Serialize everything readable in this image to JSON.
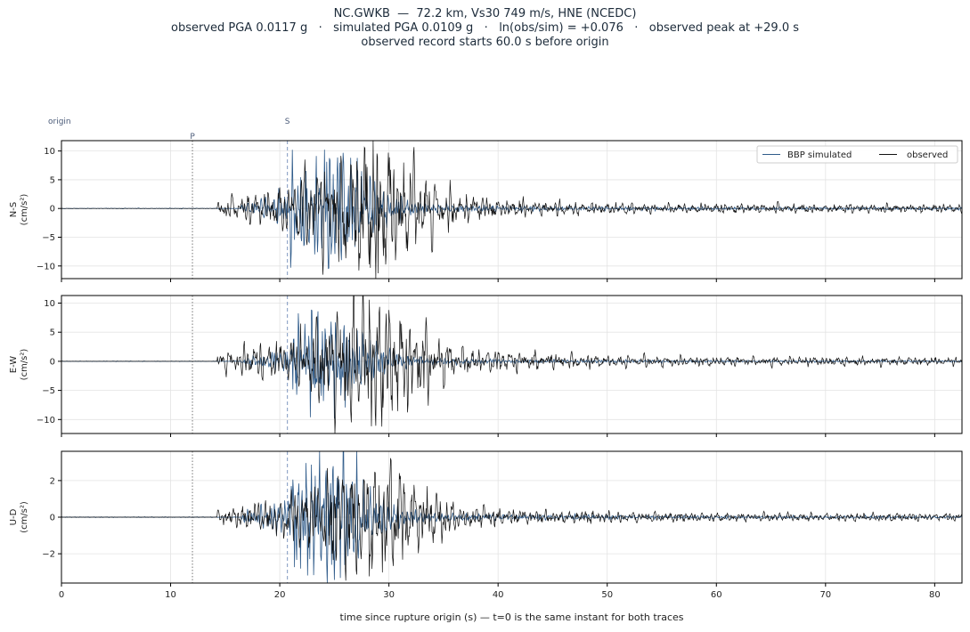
{
  "title": {
    "line1": "NC.GWKB  —  72.2 km, Vs30 749 m/s, HNE (NCEDC)",
    "line2": "observed PGA 0.0117 g   ·   simulated PGA 0.0109 g   ·   ln(obs/sim) = +0.076   ·   observed peak at +29.0 s",
    "line3": "observed record starts 60.0 s before origin"
  },
  "colors": {
    "observed": "#111111",
    "simulated": "#2f5b8a",
    "grid": "#e3e3e3",
    "p_line": "#777777",
    "s_line": "#7f97c0"
  },
  "chart_data": {
    "type": "line",
    "xlabel": "time since rupture origin (s)   —   t=0 is the same instant for both traces",
    "xlim": [
      0,
      82.5
    ],
    "xticks": [
      0,
      10,
      20,
      30,
      40,
      50,
      60,
      70,
      80
    ],
    "markers": {
      "origin_label": "origin",
      "p_label": "P",
      "p_time": 12.0,
      "s_label": "S",
      "s_time": 20.7
    },
    "legend": {
      "simulated": "BBP simulated",
      "observed": "observed",
      "position": "top-right"
    },
    "panels": [
      {
        "id": "ns",
        "ylabel_top": "N-S",
        "ylabel_bottom": "(cm/s²)",
        "ylim": [
          -12.2,
          11.8
        ],
        "yticks": [
          -10,
          -5,
          0,
          5,
          10
        ],
        "obs_peak": 11.5,
        "obs_peak_t": 29.0,
        "sim_peak": 10.6,
        "sim_peak_t": 24.5,
        "seed_obs": 11,
        "seed_sim": 23
      },
      {
        "id": "ew",
        "ylabel_top": "E-W",
        "ylabel_bottom": "(cm/s²)",
        "ylim": [
          -12.4,
          11.3
        ],
        "yticks": [
          -10,
          -5,
          0,
          5,
          10
        ],
        "obs_peak": 11.3,
        "obs_peak_t": 28.8,
        "sim_peak": 8.1,
        "sim_peak_t": 26.0,
        "seed_obs": 37,
        "seed_sim": 41
      },
      {
        "id": "ud",
        "ylabel_top": "U-D",
        "ylabel_bottom": "(cm/s²)",
        "ylim": [
          -3.6,
          3.6
        ],
        "yticks": [
          -2,
          0,
          2
        ],
        "obs_peak": 3.3,
        "obs_peak_t": 28.2,
        "sim_peak": 3.5,
        "sim_peak_t": 25.0,
        "seed_obs": 53,
        "seed_sim": 67
      }
    ]
  }
}
